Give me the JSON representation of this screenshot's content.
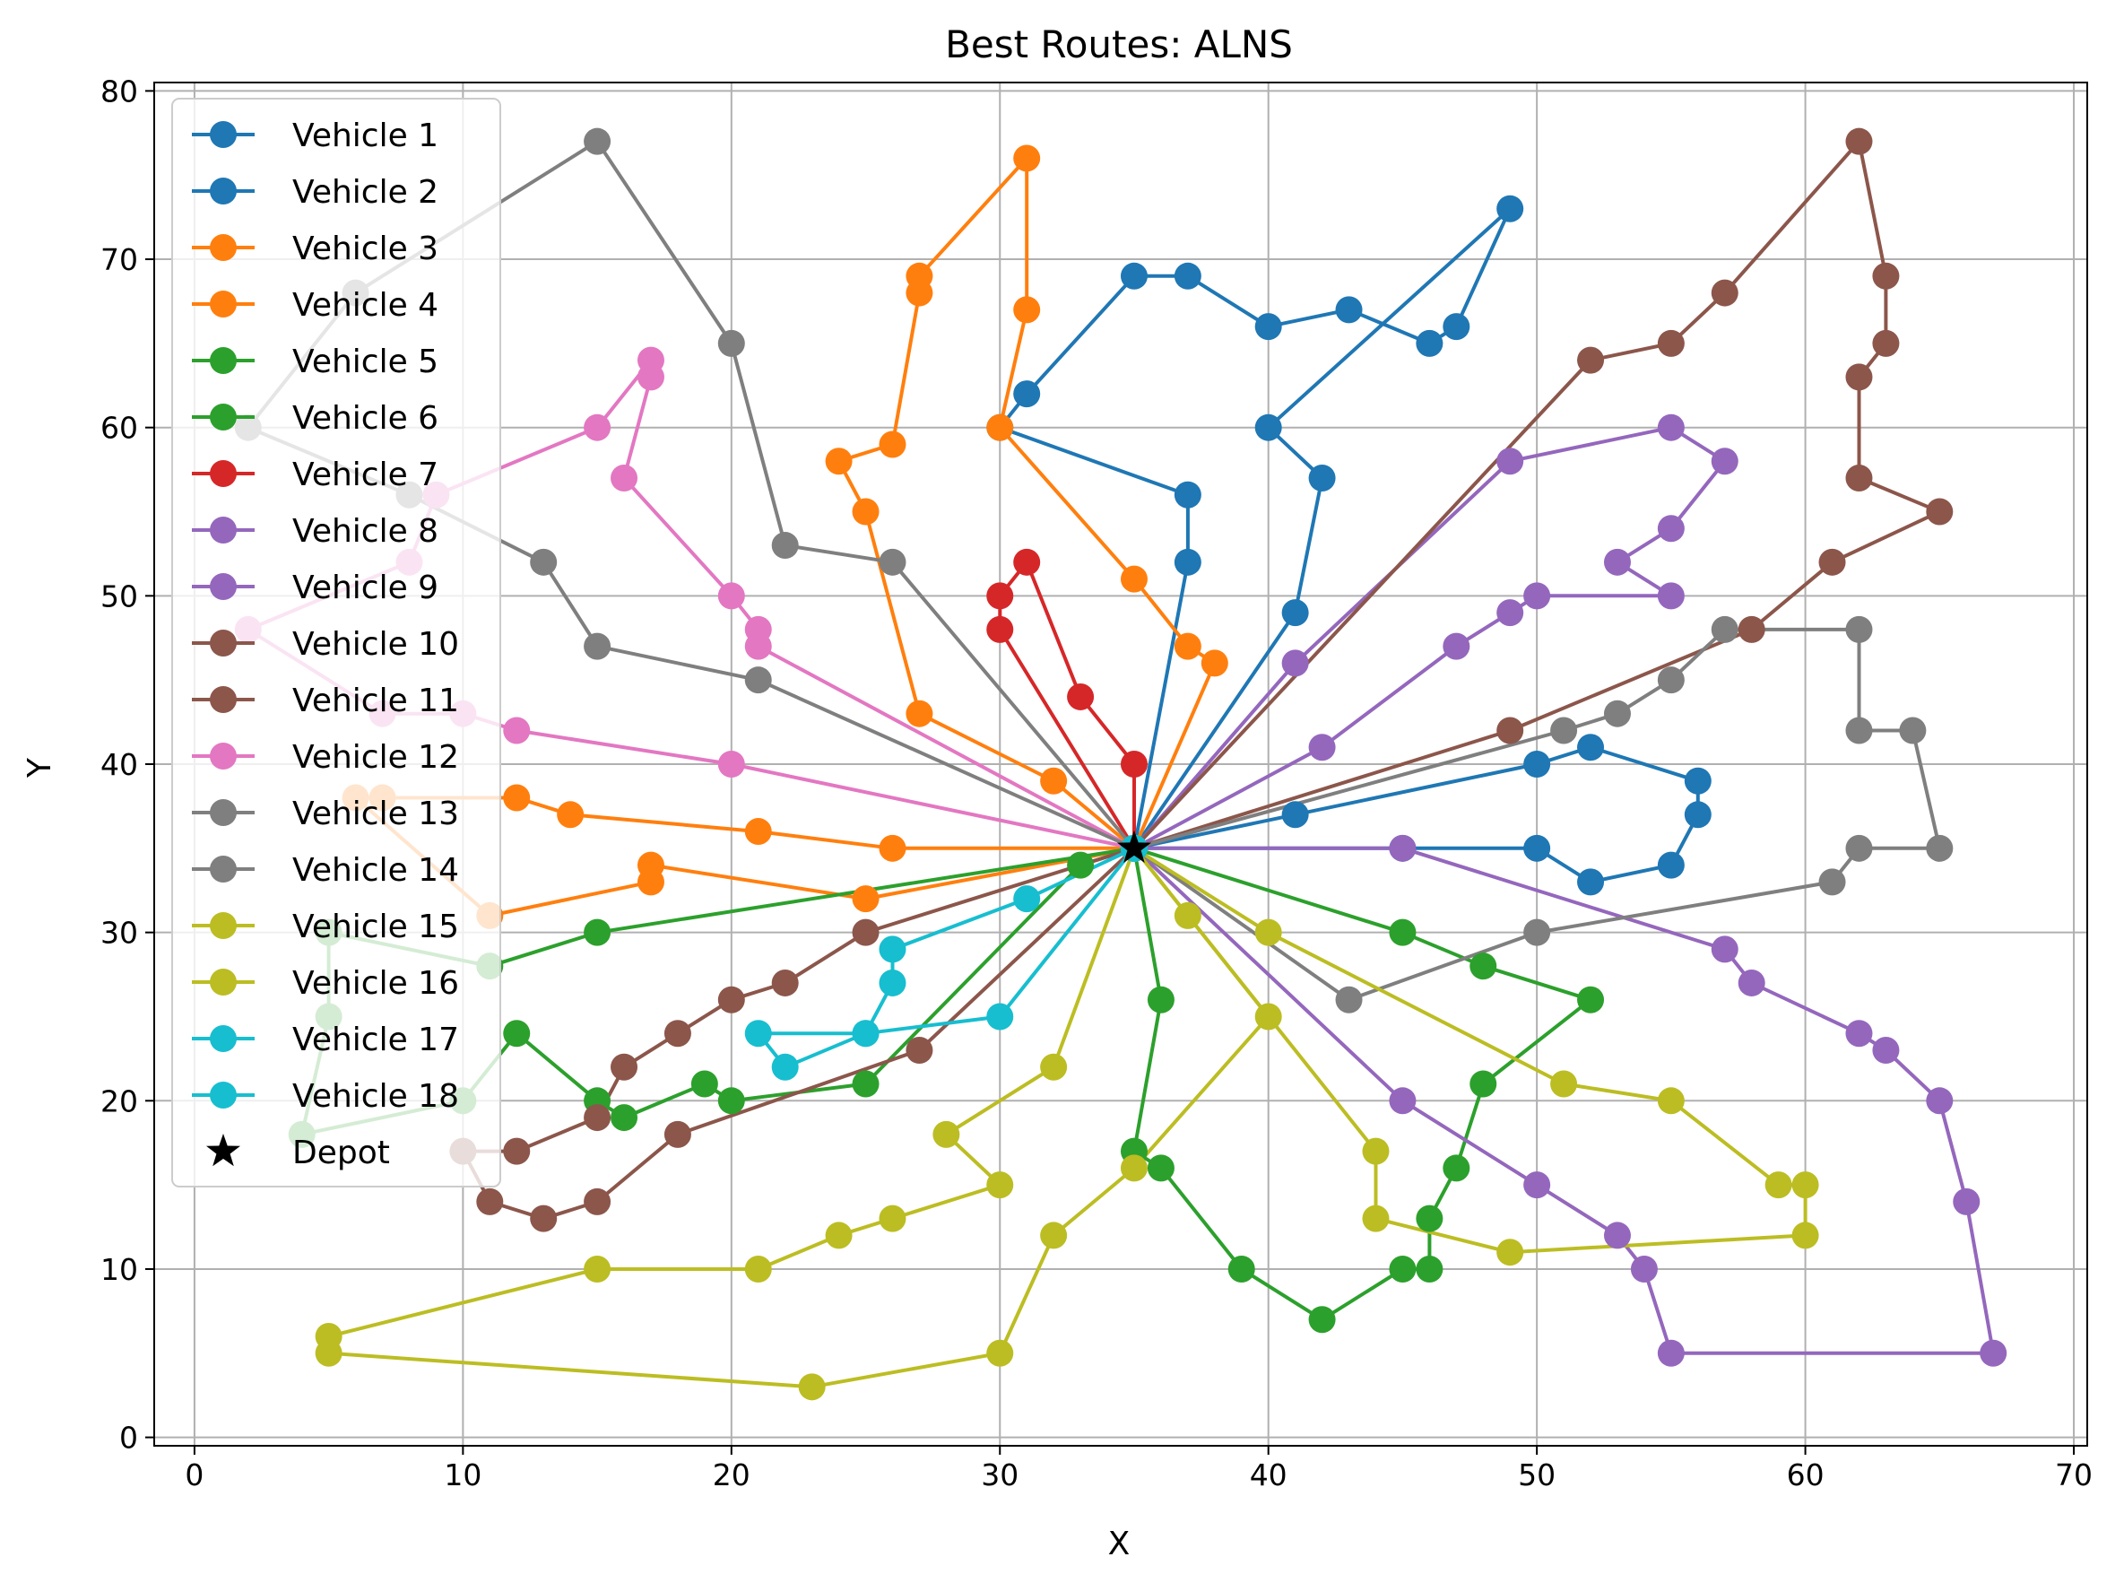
{
  "chart_data": {
    "type": "line",
    "title": "Best Routes: ALNS",
    "xlabel": "X",
    "ylabel": "Y",
    "xlim": [
      -1.5,
      70.5
    ],
    "ylim": [
      -0.5,
      80.5
    ],
    "xticks": [
      0,
      10,
      20,
      30,
      40,
      50,
      60,
      70
    ],
    "yticks": [
      0,
      10,
      20,
      30,
      40,
      50,
      60,
      70,
      80
    ],
    "grid": true,
    "legend_position": "upper-left",
    "depot": {
      "name": "Depot",
      "x": 35,
      "y": 35
    },
    "series": [
      {
        "name": "Vehicle 1",
        "color": "#1f77b4",
        "points": [
          [
            35,
            35
          ],
          [
            37,
            52
          ],
          [
            37,
            56
          ],
          [
            30,
            60
          ],
          [
            31,
            62
          ],
          [
            35,
            69
          ],
          [
            37,
            69
          ],
          [
            40,
            66
          ],
          [
            43,
            67
          ],
          [
            46,
            65
          ],
          [
            47,
            66
          ],
          [
            49,
            73
          ],
          [
            40,
            60
          ],
          [
            42,
            57
          ],
          [
            41,
            49
          ],
          [
            35,
            35
          ]
        ]
      },
      {
        "name": "Vehicle 2",
        "color": "#1f77b4",
        "points": [
          [
            35,
            35
          ],
          [
            41,
            37
          ],
          [
            50,
            40
          ],
          [
            52,
            41
          ],
          [
            56,
            39
          ],
          [
            56,
            37
          ],
          [
            55,
            34
          ],
          [
            52,
            33
          ],
          [
            50,
            35
          ],
          [
            45,
            35
          ],
          [
            35,
            35
          ]
        ]
      },
      {
        "name": "Vehicle 3",
        "color": "#ff7f0e",
        "points": [
          [
            35,
            35
          ],
          [
            38,
            46
          ],
          [
            37,
            47
          ],
          [
            35,
            51
          ],
          [
            30,
            60
          ],
          [
            31,
            67
          ],
          [
            31,
            76
          ],
          [
            27,
            69
          ],
          [
            27,
            68
          ],
          [
            26,
            59
          ],
          [
            24,
            58
          ],
          [
            25,
            55
          ],
          [
            27,
            43
          ],
          [
            32,
            39
          ],
          [
            35,
            35
          ]
        ]
      },
      {
        "name": "Vehicle 4",
        "color": "#ff7f0e",
        "points": [
          [
            35,
            35
          ],
          [
            26,
            35
          ],
          [
            21,
            36
          ],
          [
            14,
            37
          ],
          [
            12,
            38
          ],
          [
            7,
            38
          ],
          [
            6,
            38
          ],
          [
            11,
            31
          ],
          [
            17,
            33
          ],
          [
            17,
            34
          ],
          [
            25,
            32
          ],
          [
            35,
            35
          ]
        ]
      },
      {
        "name": "Vehicle 5",
        "color": "#2ca02c",
        "points": [
          [
            35,
            35
          ],
          [
            36,
            26
          ],
          [
            35,
            17
          ],
          [
            36,
            16
          ],
          [
            39,
            10
          ],
          [
            42,
            7
          ],
          [
            45,
            10
          ],
          [
            46,
            10
          ],
          [
            46,
            13
          ],
          [
            47,
            16
          ],
          [
            48,
            21
          ],
          [
            52,
            26
          ],
          [
            48,
            28
          ],
          [
            45,
            30
          ],
          [
            35,
            35
          ]
        ]
      },
      {
        "name": "Vehicle 6",
        "color": "#2ca02c",
        "points": [
          [
            35,
            35
          ],
          [
            33,
            34
          ],
          [
            25,
            21
          ],
          [
            20,
            20
          ],
          [
            19,
            21
          ],
          [
            16,
            19
          ],
          [
            15,
            20
          ],
          [
            12,
            24
          ],
          [
            10,
            20
          ],
          [
            4,
            18
          ],
          [
            5,
            25
          ],
          [
            5,
            30
          ],
          [
            11,
            28
          ],
          [
            15,
            30
          ],
          [
            35,
            35
          ]
        ]
      },
      {
        "name": "Vehicle 7",
        "color": "#d62728",
        "points": [
          [
            35,
            35
          ],
          [
            35,
            40
          ],
          [
            33,
            44
          ],
          [
            31,
            52
          ],
          [
            30,
            50
          ],
          [
            30,
            48
          ],
          [
            35,
            35
          ]
        ]
      },
      {
        "name": "Vehicle 8",
        "color": "#9467bd",
        "points": [
          [
            35,
            35
          ],
          [
            42,
            41
          ],
          [
            47,
            47
          ],
          [
            49,
            49
          ],
          [
            50,
            50
          ],
          [
            55,
            50
          ],
          [
            53,
            52
          ],
          [
            55,
            54
          ],
          [
            57,
            58
          ],
          [
            55,
            60
          ],
          [
            49,
            58
          ],
          [
            41,
            46
          ],
          [
            35,
            35
          ]
        ]
      },
      {
        "name": "Vehicle 9",
        "color": "#9467bd",
        "points": [
          [
            35,
            35
          ],
          [
            45,
            20
          ],
          [
            50,
            15
          ],
          [
            53,
            12
          ],
          [
            54,
            10
          ],
          [
            55,
            5
          ],
          [
            67,
            5
          ],
          [
            66,
            14
          ],
          [
            65,
            20
          ],
          [
            63,
            23
          ],
          [
            62,
            24
          ],
          [
            58,
            27
          ],
          [
            57,
            29
          ],
          [
            45,
            35
          ],
          [
            35,
            35
          ]
        ]
      },
      {
        "name": "Vehicle 10",
        "color": "#8c564b",
        "points": [
          [
            35,
            35
          ],
          [
            52,
            64
          ],
          [
            55,
            65
          ],
          [
            57,
            68
          ],
          [
            62,
            77
          ],
          [
            63,
            69
          ],
          [
            63,
            65
          ],
          [
            62,
            63
          ],
          [
            62,
            57
          ],
          [
            65,
            55
          ],
          [
            61,
            52
          ],
          [
            58,
            48
          ],
          [
            49,
            42
          ],
          [
            35,
            35
          ]
        ]
      },
      {
        "name": "Vehicle 11",
        "color": "#8c564b",
        "points": [
          [
            35,
            35
          ],
          [
            25,
            30
          ],
          [
            22,
            27
          ],
          [
            20,
            26
          ],
          [
            18,
            24
          ],
          [
            16,
            22
          ],
          [
            15,
            19
          ],
          [
            12,
            17
          ],
          [
            10,
            17
          ],
          [
            11,
            14
          ],
          [
            13,
            13
          ],
          [
            15,
            14
          ],
          [
            18,
            18
          ],
          [
            27,
            23
          ],
          [
            35,
            35
          ]
        ]
      },
      {
        "name": "Vehicle 12",
        "color": "#e377c2",
        "points": [
          [
            35,
            35
          ],
          [
            21,
            47
          ],
          [
            21,
            48
          ],
          [
            20,
            50
          ],
          [
            16,
            57
          ],
          [
            17,
            63
          ],
          [
            17,
            64
          ],
          [
            15,
            60
          ],
          [
            9,
            56
          ],
          [
            8,
            52
          ],
          [
            2,
            48
          ],
          [
            7,
            43
          ],
          [
            10,
            43
          ],
          [
            12,
            42
          ],
          [
            20,
            40
          ],
          [
            35,
            35
          ]
        ]
      },
      {
        "name": "Vehicle 13",
        "color": "#7f7f7f",
        "points": [
          [
            35,
            35
          ],
          [
            26,
            52
          ],
          [
            22,
            53
          ],
          [
            20,
            65
          ],
          [
            15,
            77
          ],
          [
            6,
            68
          ],
          [
            2,
            60
          ],
          [
            8,
            56
          ],
          [
            13,
            52
          ],
          [
            15,
            47
          ],
          [
            21,
            45
          ],
          [
            35,
            35
          ]
        ]
      },
      {
        "name": "Vehicle 14",
        "color": "#7f7f7f",
        "points": [
          [
            35,
            35
          ],
          [
            51,
            42
          ],
          [
            53,
            43
          ],
          [
            55,
            45
          ],
          [
            57,
            48
          ],
          [
            62,
            48
          ],
          [
            62,
            42
          ],
          [
            64,
            42
          ],
          [
            65,
            35
          ],
          [
            62,
            35
          ],
          [
            61,
            33
          ],
          [
            50,
            30
          ],
          [
            43,
            26
          ],
          [
            35,
            35
          ]
        ]
      },
      {
        "name": "Vehicle 15",
        "color": "#bcbd22",
        "points": [
          [
            35,
            35
          ],
          [
            37,
            31
          ],
          [
            44,
            17
          ],
          [
            44,
            13
          ],
          [
            49,
            11
          ],
          [
            60,
            12
          ],
          [
            60,
            15
          ],
          [
            59,
            15
          ],
          [
            55,
            20
          ],
          [
            51,
            21
          ],
          [
            40,
            30
          ],
          [
            35,
            35
          ]
        ]
      },
      {
        "name": "Vehicle 16",
        "color": "#bcbd22",
        "points": [
          [
            35,
            35
          ],
          [
            32,
            22
          ],
          [
            28,
            18
          ],
          [
            30,
            15
          ],
          [
            26,
            13
          ],
          [
            24,
            12
          ],
          [
            21,
            10
          ],
          [
            15,
            10
          ],
          [
            5,
            6
          ],
          [
            5,
            5
          ],
          [
            23,
            3
          ],
          [
            30,
            5
          ],
          [
            32,
            12
          ],
          [
            35,
            16
          ],
          [
            40,
            25
          ],
          [
            35,
            35
          ]
        ]
      },
      {
        "name": "Vehicle 17",
        "color": "#17becf",
        "points": [
          [
            35,
            35
          ],
          [
            31,
            32
          ],
          [
            26,
            29
          ],
          [
            26,
            27
          ],
          [
            25,
            24
          ],
          [
            22,
            22
          ],
          [
            21,
            24
          ],
          [
            25,
            24
          ],
          [
            30,
            25
          ],
          [
            35,
            35
          ]
        ]
      },
      {
        "name": "Vehicle 18",
        "color": "#17becf",
        "points": [
          [
            35,
            35
          ],
          [
            35,
            35
          ]
        ]
      }
    ]
  }
}
